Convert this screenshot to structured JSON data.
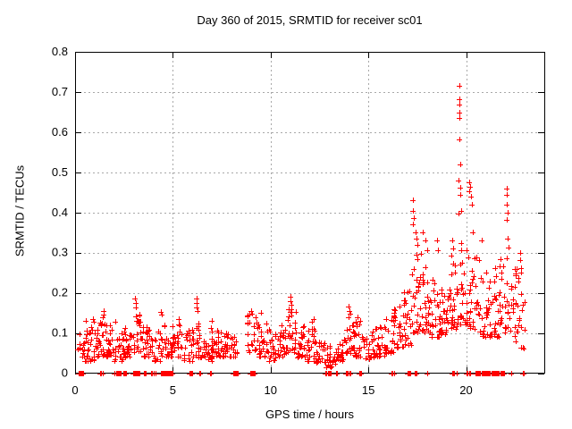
{
  "chart_data": {
    "type": "scatter",
    "title": "Day 360 of 2015, SRMTID for receiver sc01",
    "xlabel": "GPS time / hours",
    "ylabel": "SRMTID / TECUs",
    "xlim": [
      0,
      24
    ],
    "ylim": [
      0,
      0.8
    ],
    "xticks": [
      0,
      5,
      10,
      15,
      20
    ],
    "yticks": [
      0,
      0.1,
      0.2,
      0.3,
      0.4,
      0.5,
      0.6,
      0.7,
      0.8
    ],
    "grid": true,
    "legend": "none",
    "marker": {
      "glyph": "plus",
      "size": 7,
      "color": "#ff0000"
    },
    "colors": {
      "background": "#ffffff",
      "axis": "#000000",
      "grid": "#a8a8a8",
      "text": "#000000"
    },
    "series_name": "SRMTID",
    "seed": 42,
    "band_bins": [
      [
        0.15,
        0.5,
        0.04,
        0.11,
        12
      ],
      [
        0.5,
        1.0,
        0.03,
        0.13,
        26
      ],
      [
        1.0,
        1.5,
        0.04,
        0.14,
        26
      ],
      [
        1.5,
        2.0,
        0.04,
        0.12,
        26
      ],
      [
        2.0,
        2.5,
        0.03,
        0.1,
        22
      ],
      [
        2.5,
        3.0,
        0.04,
        0.12,
        24
      ],
      [
        3.0,
        3.5,
        0.05,
        0.15,
        26
      ],
      [
        3.5,
        4.0,
        0.04,
        0.12,
        24
      ],
      [
        4.0,
        4.5,
        0.03,
        0.11,
        20
      ],
      [
        4.5,
        5.0,
        0.04,
        0.12,
        24
      ],
      [
        5.0,
        5.5,
        0.04,
        0.13,
        24
      ],
      [
        5.5,
        6.0,
        0.03,
        0.11,
        22
      ],
      [
        6.0,
        6.5,
        0.04,
        0.14,
        24
      ],
      [
        6.5,
        7.0,
        0.03,
        0.12,
        24
      ],
      [
        7.0,
        7.5,
        0.04,
        0.12,
        24
      ],
      [
        7.5,
        8.0,
        0.04,
        0.1,
        22
      ],
      [
        8.0,
        8.35,
        0.04,
        0.09,
        12
      ],
      [
        8.8,
        9.3,
        0.05,
        0.15,
        22
      ],
      [
        9.3,
        9.8,
        0.04,
        0.13,
        24
      ],
      [
        9.8,
        10.3,
        0.03,
        0.11,
        24
      ],
      [
        10.3,
        10.8,
        0.04,
        0.12,
        24
      ],
      [
        10.8,
        11.3,
        0.05,
        0.16,
        26
      ],
      [
        11.3,
        11.8,
        0.04,
        0.12,
        24
      ],
      [
        11.8,
        12.3,
        0.03,
        0.11,
        24
      ],
      [
        12.3,
        12.8,
        0.025,
        0.085,
        22
      ],
      [
        12.8,
        13.3,
        0.015,
        0.07,
        22
      ],
      [
        13.3,
        13.8,
        0.03,
        0.09,
        22
      ],
      [
        13.8,
        14.3,
        0.05,
        0.14,
        24
      ],
      [
        14.3,
        14.8,
        0.04,
        0.13,
        24
      ],
      [
        14.8,
        15.3,
        0.035,
        0.11,
        22
      ],
      [
        15.3,
        15.8,
        0.04,
        0.12,
        22
      ],
      [
        15.8,
        16.3,
        0.05,
        0.14,
        24
      ],
      [
        16.3,
        16.8,
        0.06,
        0.16,
        24
      ],
      [
        16.8,
        17.2,
        0.07,
        0.22,
        22
      ],
      [
        17.2,
        17.7,
        0.1,
        0.3,
        28
      ],
      [
        17.7,
        18.2,
        0.1,
        0.28,
        28
      ],
      [
        18.2,
        18.7,
        0.09,
        0.24,
        26
      ],
      [
        18.7,
        19.2,
        0.09,
        0.22,
        26
      ],
      [
        19.2,
        19.7,
        0.11,
        0.3,
        28
      ],
      [
        19.7,
        20.2,
        0.12,
        0.33,
        28
      ],
      [
        20.2,
        20.7,
        0.11,
        0.29,
        26
      ],
      [
        20.7,
        21.2,
        0.09,
        0.26,
        24
      ],
      [
        21.2,
        21.7,
        0.09,
        0.27,
        26
      ],
      [
        21.7,
        22.2,
        0.1,
        0.29,
        26
      ],
      [
        22.2,
        22.7,
        0.08,
        0.27,
        24
      ],
      [
        22.7,
        23.0,
        0.06,
        0.2,
        12
      ]
    ],
    "spike_points": [
      [
        0.9,
        0.135
      ],
      [
        0.95,
        0.128
      ],
      [
        1.45,
        0.155
      ],
      [
        1.48,
        0.145
      ],
      [
        1.42,
        0.138
      ],
      [
        2.05,
        0.128
      ],
      [
        3.08,
        0.185
      ],
      [
        3.1,
        0.175
      ],
      [
        3.12,
        0.163
      ],
      [
        3.3,
        0.145
      ],
      [
        4.4,
        0.152
      ],
      [
        4.44,
        0.145
      ],
      [
        5.3,
        0.135
      ],
      [
        6.2,
        0.185
      ],
      [
        6.23,
        0.174
      ],
      [
        6.2,
        0.163
      ],
      [
        6.26,
        0.155
      ],
      [
        7.0,
        0.13
      ],
      [
        9.0,
        0.155
      ],
      [
        9.04,
        0.148
      ],
      [
        9.5,
        0.15
      ],
      [
        11.0,
        0.19
      ],
      [
        11.02,
        0.18
      ],
      [
        11.05,
        0.17
      ],
      [
        11.08,
        0.16
      ],
      [
        12.1,
        0.128
      ],
      [
        12.2,
        0.135
      ],
      [
        14.0,
        0.165
      ],
      [
        14.02,
        0.155
      ],
      [
        14.06,
        0.148
      ],
      [
        14.45,
        0.14
      ],
      [
        16.3,
        0.158
      ],
      [
        16.6,
        0.165
      ],
      [
        17.3,
        0.43
      ],
      [
        17.28,
        0.405
      ],
      [
        17.33,
        0.385
      ],
      [
        17.3,
        0.37
      ],
      [
        17.4,
        0.35
      ],
      [
        17.45,
        0.335
      ],
      [
        17.5,
        0.32
      ],
      [
        17.8,
        0.35
      ],
      [
        17.9,
        0.33
      ],
      [
        18.0,
        0.305
      ],
      [
        18.5,
        0.33
      ],
      [
        18.55,
        0.305
      ],
      [
        19.3,
        0.33
      ],
      [
        19.35,
        0.31
      ],
      [
        19.65,
        0.715
      ],
      [
        19.65,
        0.683
      ],
      [
        19.67,
        0.668
      ],
      [
        19.65,
        0.648
      ],
      [
        19.67,
        0.636
      ],
      [
        19.66,
        0.582
      ],
      [
        19.68,
        0.52
      ],
      [
        19.63,
        0.48
      ],
      [
        19.7,
        0.462
      ],
      [
        19.72,
        0.443
      ],
      [
        19.75,
        0.405
      ],
      [
        19.6,
        0.398
      ],
      [
        20.15,
        0.475
      ],
      [
        20.2,
        0.465
      ],
      [
        20.17,
        0.452
      ],
      [
        20.25,
        0.44
      ],
      [
        20.3,
        0.42
      ],
      [
        20.35,
        0.35
      ],
      [
        20.8,
        0.33
      ],
      [
        22.08,
        0.46
      ],
      [
        22.1,
        0.443
      ],
      [
        22.08,
        0.42
      ],
      [
        22.13,
        0.4
      ],
      [
        22.1,
        0.382
      ],
      [
        22.14,
        0.335
      ],
      [
        22.18,
        0.312
      ],
      [
        22.75,
        0.3
      ],
      [
        22.78,
        0.282
      ],
      [
        22.8,
        0.262
      ],
      [
        22.82,
        0.25
      ]
    ],
    "baseline_points": [
      0.2,
      0.24,
      0.28,
      0.32,
      0.36,
      1.3,
      1.4,
      2.0,
      2.08,
      2.15,
      2.22,
      2.3,
      2.45,
      2.5,
      2.56,
      2.95,
      3.0,
      3.05,
      3.1,
      3.16,
      3.25,
      3.5,
      3.56,
      3.9,
      4.0,
      4.1,
      4.4,
      4.45,
      4.5,
      4.56,
      4.62,
      4.68,
      4.75,
      4.82,
      4.9,
      4.96,
      5.85,
      5.95,
      6.35,
      6.9,
      8.1,
      8.16,
      8.22,
      8.28,
      8.95,
      9.0,
      9.06,
      9.12,
      9.18,
      12.8,
      12.95,
      13.05,
      13.35,
      13.85,
      13.92,
      14.05,
      14.55,
      14.62,
      16.2,
      16.3,
      17.0,
      17.06,
      17.12,
      17.35,
      17.42,
      18.0,
      19.3,
      19.36,
      19.5,
      20.0,
      20.06,
      20.16,
      20.5,
      20.56,
      20.62,
      20.7,
      20.78,
      20.85,
      20.92,
      21.0,
      21.06,
      21.12,
      21.2,
      21.3,
      21.36,
      21.45,
      21.55,
      21.62,
      21.75,
      21.82,
      21.9,
      22.3,
      22.9
    ]
  }
}
